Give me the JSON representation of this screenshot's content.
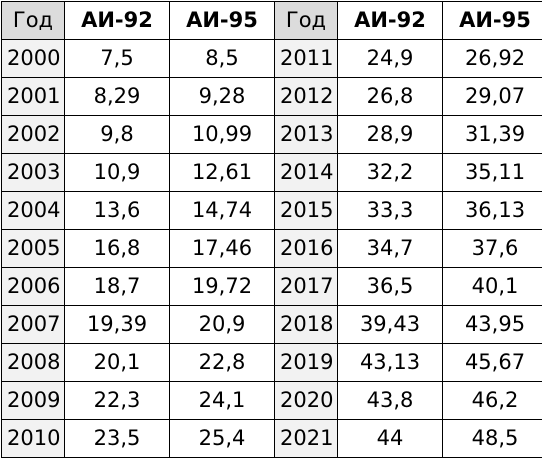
{
  "table": {
    "headers": [
      "Год",
      "АИ-92",
      "АИ-95",
      "Год",
      "АИ-92",
      "АИ-95"
    ],
    "rows": [
      [
        "2000",
        "7,5",
        "8,5",
        "2011",
        "24,9",
        "26,92"
      ],
      [
        "2001",
        "8,29",
        "9,28",
        "2012",
        "26,8",
        "29,07"
      ],
      [
        "2002",
        "9,8",
        "10,99",
        "2013",
        "28,9",
        "31,39"
      ],
      [
        "2003",
        "10,9",
        "12,61",
        "2014",
        "32,2",
        "35,11"
      ],
      [
        "2004",
        "13,6",
        "14,74",
        "2015",
        "33,3",
        "36,13"
      ],
      [
        "2005",
        "16,8",
        "17,46",
        "2016",
        "34,7",
        "37,6"
      ],
      [
        "2006",
        "18,7",
        "19,72",
        "2017",
        "36,5",
        "40,1"
      ],
      [
        "2007",
        "19,39",
        "20,9",
        "2018",
        "39,43",
        "43,95"
      ],
      [
        "2008",
        "20,1",
        "22,8",
        "2019",
        "43,13",
        "45,67"
      ],
      [
        "2009",
        "22,3",
        "24,1",
        "2020",
        "43,8",
        "46,2"
      ],
      [
        "2010",
        "23,5",
        "25,4",
        "2021",
        "44",
        "48,5"
      ]
    ]
  }
}
